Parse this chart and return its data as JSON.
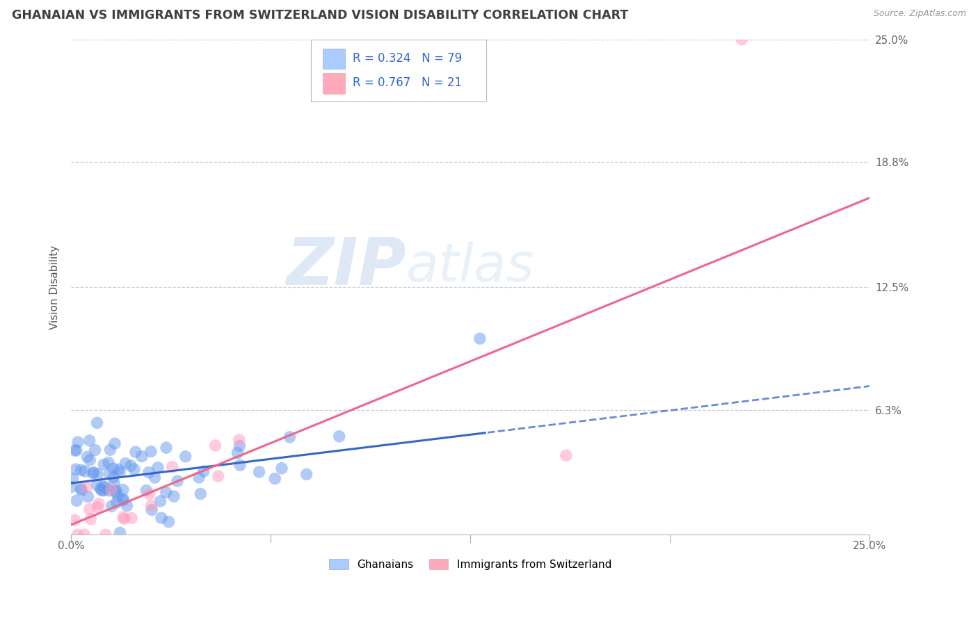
{
  "title": "GHANAIAN VS IMMIGRANTS FROM SWITZERLAND VISION DISABILITY CORRELATION CHART",
  "source": "Source: ZipAtlas.com",
  "ylabel": "Vision Disability",
  "xlim": [
    0.0,
    0.25
  ],
  "ylim": [
    0.0,
    0.25
  ],
  "xtick_labels": [
    "0.0%",
    "25.0%"
  ],
  "ytick_labels": [
    "",
    "6.3%",
    "12.5%",
    "18.8%",
    "25.0%"
  ],
  "yticks": [
    0.0,
    0.063,
    0.125,
    0.188,
    0.25
  ],
  "grid_color": "#c8c8c8",
  "background_color": "#ffffff",
  "watermark_zip": "ZIP",
  "watermark_atlas": "atlas",
  "legend_text1": "R = 0.324   N = 79",
  "legend_text2": "R = 0.767   N = 21",
  "blue_scatter": "#6699ee",
  "pink_scatter": "#ff99bb",
  "blue_line": "#3366cc",
  "pink_line": "#ee6688",
  "title_color": "#404040",
  "tick_color": "#666666",
  "source_color": "#999999",
  "ylabel_color": "#555555",
  "legend_patch1_color": "#aaccff",
  "legend_patch2_color": "#ffaabb",
  "ghana_trend_solid_end": 0.13,
  "ghana_trend_y0": 0.026,
  "ghana_trend_slope": 0.196,
  "swiss_trend_y0": 0.005,
  "swiss_trend_slope": 0.66
}
